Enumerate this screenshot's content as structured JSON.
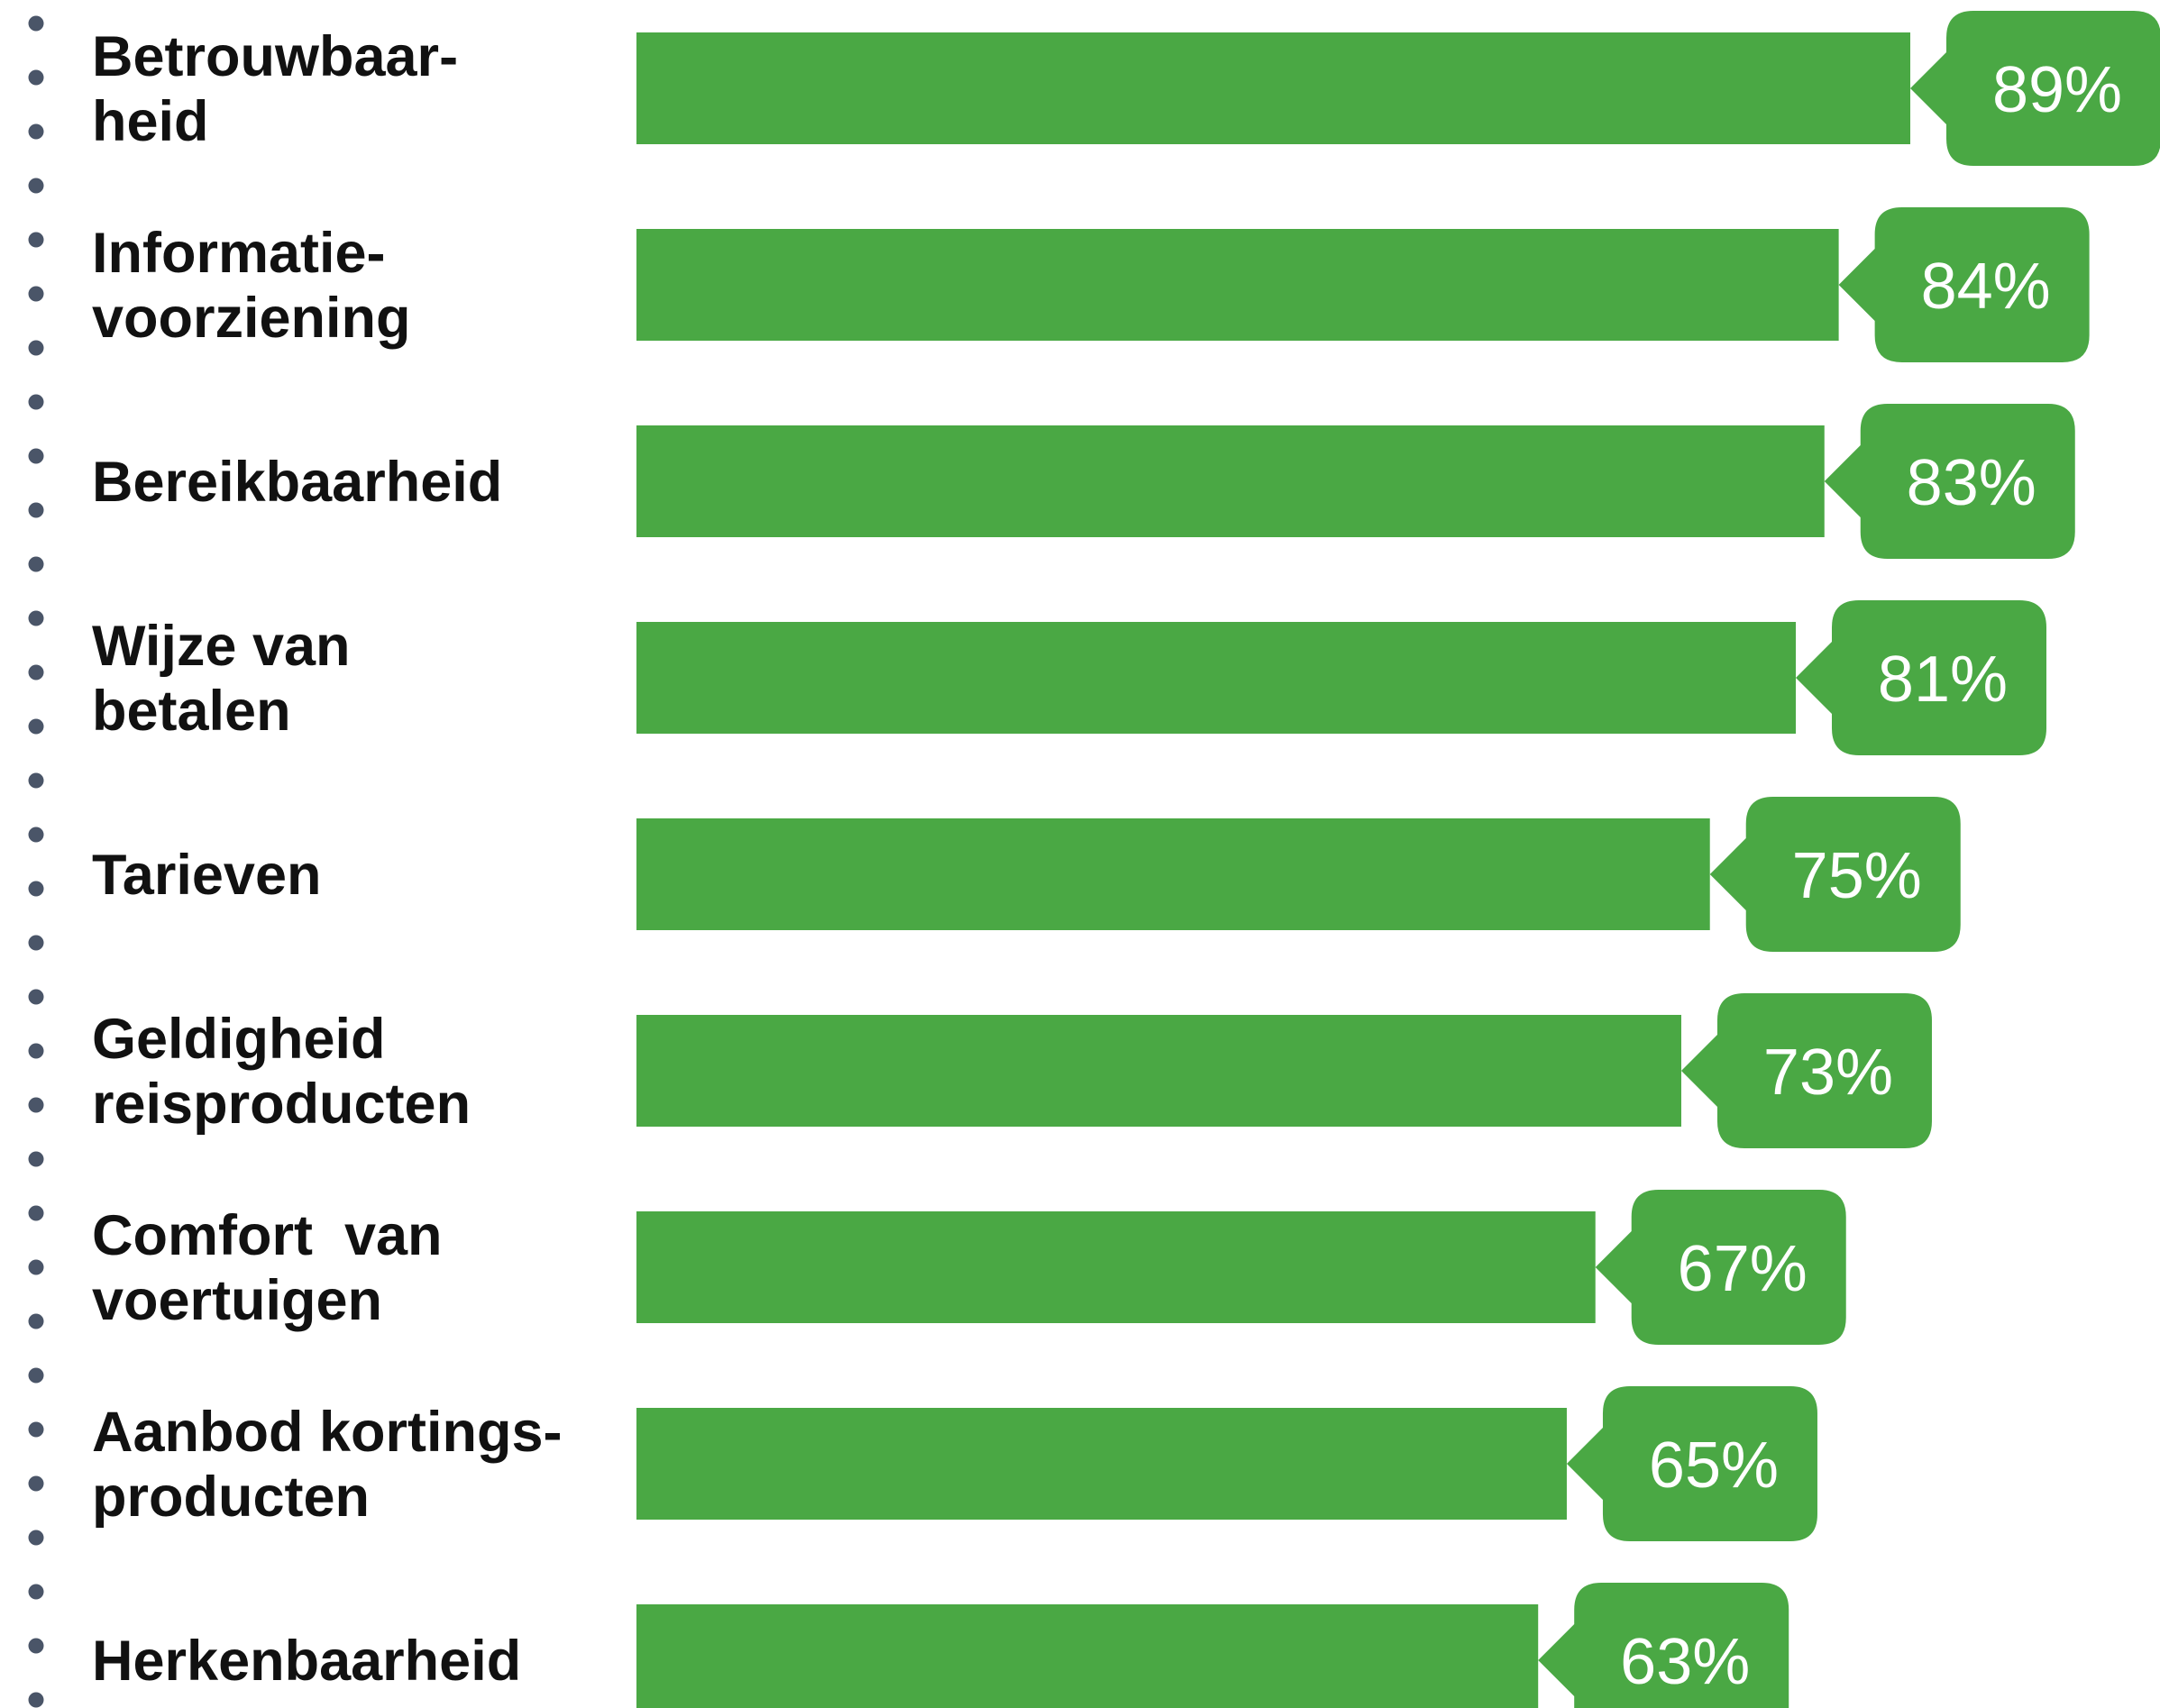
{
  "chart_data": {
    "type": "bar",
    "orientation": "horizontal",
    "categories": [
      [
        "Betrouwbaar-",
        "heid"
      ],
      [
        "Informatie-",
        "voorziening"
      ],
      [
        "Bereikbaarheid"
      ],
      [
        "Wijze van",
        "betalen"
      ],
      [
        "Tarieven"
      ],
      [
        "Geldigheid",
        "reisproducten"
      ],
      [
        "Comfort  van",
        "voertuigen"
      ],
      [
        "Aanbod kortings-",
        "producten"
      ],
      [
        "Herkenbaarheid"
      ]
    ],
    "values": [
      89,
      84,
      83,
      81,
      75,
      73,
      67,
      65,
      63
    ],
    "value_labels": [
      "89%",
      "84%",
      "83%",
      "81%",
      "75%",
      "73%",
      "67%",
      "65%",
      "63%"
    ],
    "unit": "%",
    "xlim": [
      0,
      100
    ],
    "title": "",
    "xlabel": "",
    "ylabel": "",
    "grid": false,
    "legend": "none",
    "colors": {
      "bar": "#4aa844",
      "label_box": "#4aa844",
      "label_text": "#ffffff",
      "category_text": "#111111",
      "dots": "#4a5568"
    }
  }
}
